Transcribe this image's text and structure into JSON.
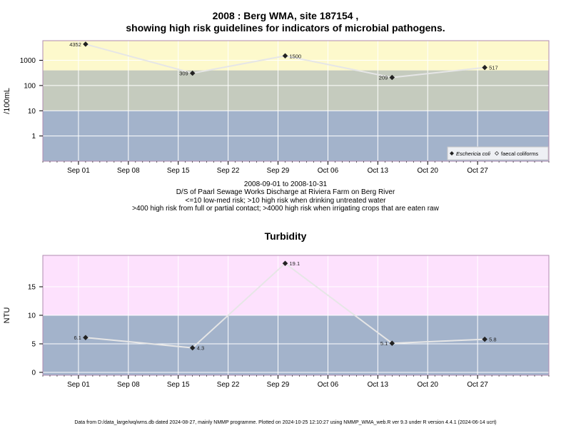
{
  "chart_data": [
    {
      "type": "line",
      "title": "2008 : Berg WMA, site 187154 ,",
      "subtitle": "showing high risk guidelines for indicators of microbial pathogens.",
      "ylabel": "/100mL",
      "yscale": "log",
      "ylim": [
        0.1,
        6000
      ],
      "yticks": [
        "1",
        "10",
        "100",
        "1000"
      ],
      "xlim": [
        "2008-08-27",
        "2008-11-06"
      ],
      "xticks": [
        {
          "date": "2008-09-01",
          "label": "Sep 01"
        },
        {
          "date": "2008-09-08",
          "label": "Sep 08"
        },
        {
          "date": "2008-09-15",
          "label": "Sep 15"
        },
        {
          "date": "2008-09-22",
          "label": "Sep 22"
        },
        {
          "date": "2008-09-29",
          "label": "Sep 29"
        },
        {
          "date": "2008-10-06",
          "label": "Oct 06"
        },
        {
          "date": "2008-10-13",
          "label": "Oct 13"
        },
        {
          "date": "2008-10-20",
          "label": "Oct 20"
        },
        {
          "date": "2008-10-27",
          "label": "Oct 27"
        }
      ],
      "bands": [
        {
          "from": 0.1,
          "to": 10,
          "color": "#a3b3cb"
        },
        {
          "from": 10,
          "to": 400,
          "color": "#c5cbbe"
        },
        {
          "from": 400,
          "to": 6000,
          "color": "#fdf9cc"
        }
      ],
      "grid": true,
      "legend_position": "bottom-right",
      "series": [
        {
          "name": "Eschericia coli",
          "marker": "filled-diamond",
          "points": [
            {
              "x": "2008-09-02",
              "y": 4352,
              "label": "4352"
            },
            {
              "x": "2008-09-17",
              "y": 309,
              "label": "309"
            },
            {
              "x": "2008-09-30",
              "y": 1500,
              "label": "1500"
            },
            {
              "x": "2008-10-15",
              "y": 209,
              "label": "209"
            },
            {
              "x": "2008-10-28",
              "y": 517,
              "label": "517"
            }
          ]
        },
        {
          "name": "faecal coliforms",
          "marker": "open-diamond",
          "points": []
        }
      ]
    },
    {
      "type": "line",
      "title": "Turbidity",
      "ylabel": "NTU",
      "ylim": [
        -0.5,
        20.5
      ],
      "yticks": [
        "0",
        "5",
        "10",
        "15"
      ],
      "xlim": [
        "2008-08-27",
        "2008-11-06"
      ],
      "xticks": [
        {
          "date": "2008-09-01",
          "label": "Sep 01"
        },
        {
          "date": "2008-09-08",
          "label": "Sep 08"
        },
        {
          "date": "2008-09-15",
          "label": "Sep 15"
        },
        {
          "date": "2008-09-22",
          "label": "Sep 22"
        },
        {
          "date": "2008-09-29",
          "label": "Sep 29"
        },
        {
          "date": "2008-10-06",
          "label": "Oct 06"
        },
        {
          "date": "2008-10-13",
          "label": "Oct 13"
        },
        {
          "date": "2008-10-20",
          "label": "Oct 20"
        },
        {
          "date": "2008-10-27",
          "label": "Oct 27"
        }
      ],
      "bands": [
        {
          "from": -0.5,
          "to": 10,
          "color": "#a3b3cb"
        },
        {
          "from": 10,
          "to": 20.5,
          "color": "#fde1fd"
        }
      ],
      "grid": true,
      "series": [
        {
          "marker": "filled-diamond",
          "points": [
            {
              "x": "2008-09-02",
              "y": 6.1,
              "label": "6.1"
            },
            {
              "x": "2008-09-17",
              "y": 4.3,
              "label": "4.3"
            },
            {
              "x": "2008-09-30",
              "y": 19.1,
              "label": "19.1"
            },
            {
              "x": "2008-10-15",
              "y": 5.1,
              "label": "5.1"
            },
            {
              "x": "2008-10-28",
              "y": 5.8,
              "label": "5.8"
            }
          ]
        }
      ]
    }
  ],
  "notes": {
    "date_range": "2008-09-01 to 2008-10-31",
    "site_description": "D/S of Paarl Sewage Works Discharge at Riviera Farm on Berg River",
    "guideline_1": "<=10 low-med risk; >10 high risk when drinking untreated water",
    "guideline_2": ">400 high risk from full or partial contact; >4000 high risk when irrigating crops that are eaten raw"
  },
  "footer": "Data from D:/data_large/wq/wms.db dated 2024-08-27, mainly NMMP programme. Plotted on 2024-10-25 12:10:27 using NMMP_WMA_web.R ver 9.3 under R version 4.4.1 (2024-06-14 ucrt)"
}
